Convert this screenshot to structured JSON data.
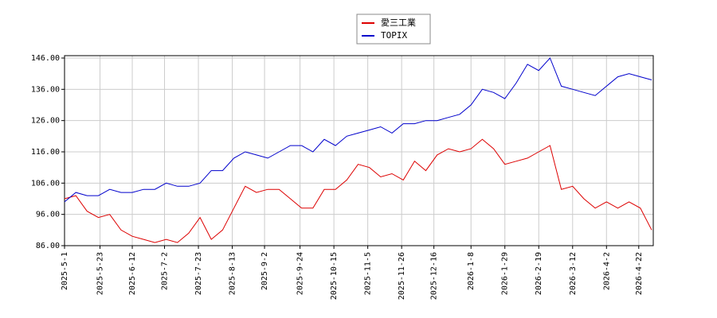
{
  "chart_data": {
    "type": "line",
    "x": [
      "2025-5-1",
      "2025-5-8",
      "2025-5-15",
      "2025-5-22",
      "2025-5-29",
      "2025-6-5",
      "2025-6-12",
      "2025-6-19",
      "2025-6-26",
      "2025-7-3",
      "2025-7-10",
      "2025-7-17",
      "2025-7-24",
      "2025-7-31",
      "2025-8-7",
      "2025-8-14",
      "2025-8-21",
      "2025-8-28",
      "2025-9-4",
      "2025-9-11",
      "2025-9-18",
      "2025-9-25",
      "2025-10-2",
      "2025-10-9",
      "2025-10-16",
      "2025-10-23",
      "2025-10-30",
      "2025-11-6",
      "2025-11-13",
      "2025-11-20",
      "2025-11-27",
      "2025-12-4",
      "2025-12-11",
      "2025-12-18",
      "2025-12-25",
      "2026-1-1",
      "2026-1-8",
      "2026-1-15",
      "2026-1-22",
      "2026-1-29",
      "2026-2-5",
      "2026-2-12",
      "2026-2-19",
      "2026-2-26",
      "2026-3-5",
      "2026-3-12",
      "2026-3-19",
      "2026-3-26",
      "2026-4-2",
      "2026-4-9",
      "2026-4-16",
      "2026-4-23",
      "2026-4-30"
    ],
    "series": [
      {
        "name": "愛三工業",
        "color": "#dd0000",
        "values": [
          101,
          102,
          97,
          95,
          96,
          91,
          89,
          88,
          87,
          88,
          87,
          90,
          95,
          88,
          91,
          98,
          105,
          103,
          104,
          104,
          101,
          98,
          98,
          104,
          104,
          107,
          112,
          111,
          108,
          109,
          107,
          113,
          110,
          115,
          117,
          116,
          117,
          120,
          117,
          112,
          113,
          114,
          116,
          118,
          104,
          105,
          101,
          98,
          100,
          98,
          100,
          98,
          91
        ]
      },
      {
        "name": "TOPIX",
        "color": "#0000cc",
        "values": [
          100,
          103,
          102,
          102,
          104,
          103,
          103,
          104,
          104,
          106,
          105,
          105,
          106,
          110,
          110,
          114,
          116,
          115,
          114,
          116,
          118,
          118,
          116,
          120,
          118,
          121,
          122,
          123,
          124,
          122,
          125,
          125,
          126,
          126,
          127,
          128,
          131,
          136,
          135,
          133,
          138,
          144,
          142,
          146,
          137,
          136,
          135,
          134,
          137,
          140,
          141,
          140,
          139
        ]
      }
    ],
    "xlim": [
      "2025-5-1",
      "2026-5-1"
    ],
    "xticks": [
      "2025-5-1",
      "2025-5-23",
      "2025-6-12",
      "2025-7-2",
      "2025-7-23",
      "2025-8-13",
      "2025-9-2",
      "2025-9-24",
      "2025-10-15",
      "2025-11-5",
      "2025-11-26",
      "2025-12-16",
      "2026-1-8",
      "2026-1-29",
      "2026-2-19",
      "2026-3-12",
      "2026-4-2",
      "2026-4-22"
    ],
    "ylim": [
      86,
      146
    ],
    "yticks": [
      {
        "value": 86,
        "label": "86.00"
      },
      {
        "value": 96,
        "label": "96.00"
      },
      {
        "value": 106,
        "label": "106.00"
      },
      {
        "value": 116,
        "label": "116.00"
      },
      {
        "value": 126,
        "label": "126.00"
      },
      {
        "value": 136,
        "label": "136.00"
      },
      {
        "value": 146,
        "label": "146.00"
      }
    ],
    "grid": true
  }
}
